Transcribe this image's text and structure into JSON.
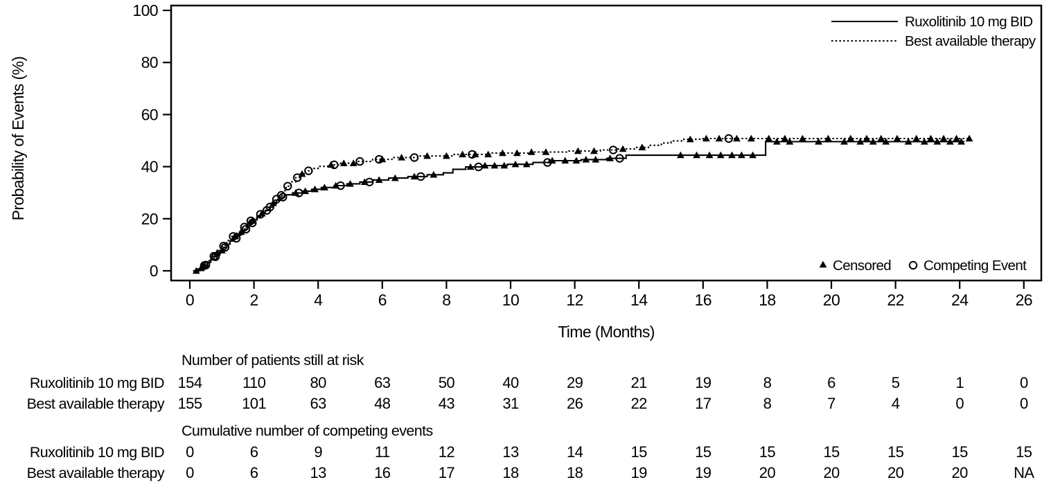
{
  "figure": {
    "background": "#ffffff",
    "ink": "#000000"
  },
  "chart_data": {
    "type": "line",
    "subtype": "cumulative-incidence-step",
    "title": "",
    "xlabel": "Time (Months)",
    "ylabel": "Probability of Events (%)",
    "xlim": [
      -0.6,
      26.6
    ],
    "ylim": [
      0,
      100
    ],
    "xticks": [
      0,
      2,
      4,
      6,
      8,
      10,
      12,
      14,
      16,
      18,
      20,
      22,
      24,
      26
    ],
    "yticks": [
      0,
      20,
      40,
      60,
      80,
      100
    ],
    "grid": false,
    "legend_position": "top-right-inside",
    "series": [
      {
        "name": "Ruxolitinib 10 mg BID",
        "style": "solid",
        "points": [
          [
            0.1,
            0
          ],
          [
            0.25,
            0.7
          ],
          [
            0.35,
            1.4
          ],
          [
            0.45,
            2.2
          ],
          [
            0.55,
            3.2
          ],
          [
            0.65,
            4.2
          ],
          [
            0.75,
            5.4
          ],
          [
            0.85,
            6.6
          ],
          [
            0.95,
            7.8
          ],
          [
            1.05,
            9.0
          ],
          [
            1.15,
            10.2
          ],
          [
            1.25,
            11.4
          ],
          [
            1.35,
            12.5
          ],
          [
            1.5,
            13.7
          ],
          [
            1.6,
            14.9
          ],
          [
            1.7,
            16.0
          ],
          [
            1.8,
            17.2
          ],
          [
            1.9,
            18.4
          ],
          [
            2.0,
            19.6
          ],
          [
            2.1,
            20.8
          ],
          [
            2.2,
            22.0
          ],
          [
            2.35,
            23.2
          ],
          [
            2.5,
            24.5
          ],
          [
            2.6,
            25.8
          ],
          [
            2.7,
            27.1
          ],
          [
            2.8,
            28.3
          ],
          [
            2.95,
            29.2
          ],
          [
            3.2,
            29.9
          ],
          [
            3.5,
            30.6
          ],
          [
            3.8,
            31.3
          ],
          [
            4.1,
            32.0
          ],
          [
            4.5,
            32.7
          ],
          [
            4.9,
            33.4
          ],
          [
            5.3,
            34.1
          ],
          [
            5.7,
            34.9
          ],
          [
            6.2,
            35.6
          ],
          [
            6.8,
            36.2
          ],
          [
            7.4,
            36.9
          ],
          [
            7.9,
            37.6
          ],
          [
            8.2,
            39.0
          ],
          [
            8.6,
            39.9
          ],
          [
            9.1,
            40.4
          ],
          [
            9.9,
            40.9
          ],
          [
            10.7,
            41.6
          ],
          [
            11.2,
            42.3
          ],
          [
            12.2,
            42.7
          ],
          [
            13.0,
            43.2
          ],
          [
            13.6,
            44.4
          ],
          [
            17.9,
            44.4
          ],
          [
            17.95,
            49.6
          ],
          [
            24.15,
            49.6
          ]
        ],
        "censored_x": [
          0.2,
          0.45,
          1.0,
          1.6,
          2.25,
          3.3,
          3.6,
          3.9,
          4.2,
          4.55,
          5.0,
          5.45,
          5.9,
          6.4,
          7.0,
          7.6,
          8.75,
          9.2,
          9.5,
          9.8,
          10.15,
          10.5,
          11.3,
          11.7,
          12.05,
          12.35,
          12.65,
          13.1,
          15.3,
          15.8,
          16.2,
          16.55,
          16.9,
          17.2,
          17.55,
          18.3,
          18.7,
          19.6,
          20.4,
          20.9,
          21.3,
          21.7,
          22.4,
          22.9,
          23.3,
          23.7,
          24.05
        ],
        "competing_x": [
          0.5,
          0.8,
          1.1,
          1.45,
          1.75,
          1.95,
          2.4,
          2.9,
          3.4,
          4.7,
          5.6,
          7.2,
          9.0,
          11.15,
          13.4
        ]
      },
      {
        "name": "Best available therapy",
        "style": "dotted",
        "points": [
          [
            0.15,
            0
          ],
          [
            0.3,
            1.0
          ],
          [
            0.4,
            2.0
          ],
          [
            0.5,
            3.0
          ],
          [
            0.6,
            4.3
          ],
          [
            0.7,
            5.6
          ],
          [
            0.8,
            6.9
          ],
          [
            0.9,
            8.2
          ],
          [
            1.0,
            9.5
          ],
          [
            1.1,
            10.8
          ],
          [
            1.2,
            12.0
          ],
          [
            1.3,
            13.2
          ],
          [
            1.45,
            14.4
          ],
          [
            1.55,
            15.6
          ],
          [
            1.65,
            16.8
          ],
          [
            1.8,
            18.0
          ],
          [
            1.9,
            19.2
          ],
          [
            2.0,
            20.4
          ],
          [
            2.15,
            21.7
          ],
          [
            2.3,
            23.0
          ],
          [
            2.45,
            24.5
          ],
          [
            2.55,
            26.0
          ],
          [
            2.65,
            27.5
          ],
          [
            2.75,
            29.0
          ],
          [
            2.9,
            30.8
          ],
          [
            3.0,
            32.5
          ],
          [
            3.15,
            34.2
          ],
          [
            3.3,
            35.8
          ],
          [
            3.45,
            37.2
          ],
          [
            3.6,
            38.4
          ],
          [
            3.8,
            39.3
          ],
          [
            4.0,
            40.1
          ],
          [
            4.3,
            40.7
          ],
          [
            4.7,
            41.3
          ],
          [
            5.2,
            42.0
          ],
          [
            5.7,
            42.8
          ],
          [
            6.3,
            43.5
          ],
          [
            7.1,
            44.1
          ],
          [
            8.2,
            44.7
          ],
          [
            9.4,
            45.2
          ],
          [
            10.6,
            45.6
          ],
          [
            11.8,
            46.0
          ],
          [
            12.8,
            46.4
          ],
          [
            13.3,
            46.8
          ],
          [
            13.9,
            47.4
          ],
          [
            14.3,
            48.2
          ],
          [
            14.7,
            49.1
          ],
          [
            15.0,
            49.9
          ],
          [
            15.4,
            50.5
          ],
          [
            16.0,
            50.8
          ],
          [
            24.3,
            50.8
          ]
        ],
        "censored_x": [
          0.35,
          0.85,
          1.4,
          1.95,
          2.6,
          3.5,
          4.4,
          4.8,
          5.1,
          6.0,
          6.6,
          7.4,
          8.0,
          8.5,
          8.9,
          9.3,
          9.75,
          10.2,
          10.65,
          11.1,
          12.1,
          12.6,
          13.5,
          14.1,
          15.6,
          16.1,
          16.5,
          17.05,
          17.5,
          18.05,
          18.55,
          19.1,
          19.9,
          20.6,
          21.1,
          21.55,
          22.05,
          22.65,
          23.1,
          23.5,
          23.9,
          24.3
        ],
        "competing_x": [
          0.45,
          0.75,
          1.05,
          1.35,
          1.7,
          1.9,
          2.2,
          2.5,
          2.7,
          2.85,
          3.05,
          3.35,
          3.7,
          4.5,
          5.3,
          5.9,
          7.0,
          8.8,
          13.2,
          16.8
        ]
      }
    ],
    "marker_legend": [
      {
        "marker": "filled-triangle",
        "label": "Censored"
      },
      {
        "marker": "open-circle",
        "label": "Competing Event"
      }
    ]
  },
  "risk_tables": [
    {
      "header": "Number of patients still at risk",
      "months": [
        0,
        2,
        4,
        6,
        8,
        10,
        12,
        14,
        16,
        18,
        20,
        22,
        24,
        26
      ],
      "rows": [
        {
          "label": "Ruxolitinib 10 mg BID",
          "values": [
            "154",
            "110",
            "80",
            "63",
            "50",
            "40",
            "29",
            "21",
            "19",
            "8",
            "6",
            "5",
            "1",
            "0"
          ]
        },
        {
          "label": "Best available therapy",
          "values": [
            "155",
            "101",
            "63",
            "48",
            "43",
            "31",
            "26",
            "22",
            "17",
            "8",
            "7",
            "4",
            "0",
            "0"
          ]
        }
      ]
    },
    {
      "header": "Cumulative number of competing events",
      "months": [
        0,
        2,
        4,
        6,
        8,
        10,
        12,
        14,
        16,
        18,
        20,
        22,
        24,
        26
      ],
      "rows": [
        {
          "label": "Ruxolitinib 10 mg BID",
          "values": [
            "0",
            "6",
            "9",
            "11",
            "12",
            "13",
            "14",
            "15",
            "15",
            "15",
            "15",
            "15",
            "15",
            "15"
          ]
        },
        {
          "label": "Best available therapy",
          "values": [
            "0",
            "6",
            "13",
            "16",
            "17",
            "18",
            "18",
            "19",
            "19",
            "20",
            "20",
            "20",
            "20",
            "NA"
          ]
        }
      ]
    }
  ]
}
